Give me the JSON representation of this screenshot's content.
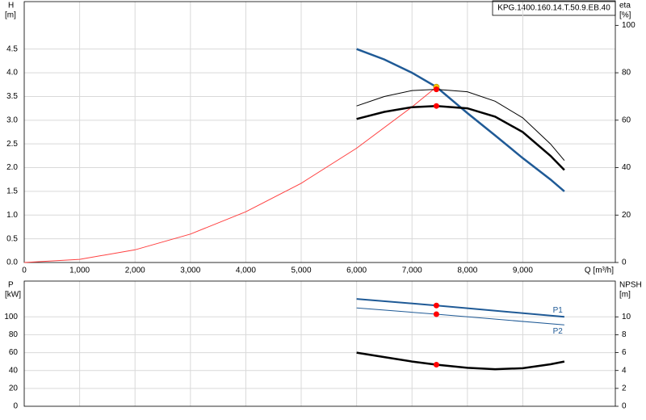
{
  "chart_data": [
    {
      "type": "line",
      "title": "KPG.1400.160.14.T.50.9.EB.40",
      "y_label": "H",
      "y_unit": "[m]",
      "y2_label": "eta",
      "y2_unit": "[%]",
      "x_label": "Q [m³/h]",
      "xlim": [
        0,
        10670
      ],
      "xticks": [
        0,
        {
          "value": 1000,
          "label": "1,000"
        },
        {
          "value": 2000,
          "label": "2,000"
        },
        {
          "value": 3000,
          "label": "3,000"
        },
        {
          "value": 4000,
          "label": "4,000"
        },
        {
          "value": 5000,
          "label": "5,000"
        },
        {
          "value": 6000,
          "label": "6,000"
        },
        {
          "value": 7000,
          "label": "7,000"
        },
        {
          "value": 8000,
          "label": "8,000"
        },
        {
          "value": 9000,
          "label": "9,000"
        }
      ],
      "ylim": [
        0,
        5.5
      ],
      "yticks": [
        {
          "value": 0,
          "label": "0.0"
        },
        0.5,
        {
          "value": 1,
          "label": "1.0"
        },
        1.5,
        {
          "value": 2,
          "label": "2.0"
        },
        2.5,
        {
          "value": 3,
          "label": "3.0"
        },
        3.5,
        {
          "value": 4,
          "label": "4.0"
        },
        4.5
      ],
      "y2lim": [
        0,
        110
      ],
      "y2ticks": [
        0,
        20,
        40,
        60,
        80,
        100
      ],
      "grid": true,
      "duty_x": 7440,
      "series": [
        {
          "color": "#1f5a96",
          "width": 2.5,
          "x": [
            6000,
            6500,
            7000,
            7440,
            8000,
            8500,
            9000,
            9500,
            9750
          ],
          "values": [
            4.5,
            4.28,
            4.0,
            3.7,
            3.15,
            2.68,
            2.2,
            1.75,
            1.5
          ],
          "marker": "#f5c400"
        },
        {
          "color": "#ff4040",
          "width": 1,
          "x": [
            0,
            1000,
            2000,
            3000,
            4000,
            5000,
            6000,
            7000,
            7440
          ],
          "values": [
            0,
            0.067,
            0.267,
            0.6,
            1.07,
            1.67,
            2.41,
            3.28,
            3.7
          ]
        },
        {
          "color": "#000000",
          "width": 1,
          "axis": "y2",
          "x": [
            6000,
            6500,
            7000,
            7440,
            8000,
            8500,
            9000,
            9500,
            9750
          ],
          "values": [
            66,
            70,
            72.5,
            73,
            72,
            68,
            61,
            50,
            43
          ],
          "marker": "#ff0000"
        },
        {
          "color": "#000000",
          "width": 2.5,
          "axis": "y2",
          "x": [
            6000,
            6500,
            7000,
            7440,
            8000,
            8500,
            9000,
            9500,
            9750
          ],
          "values": [
            60.5,
            63.5,
            65.5,
            66,
            65,
            61.5,
            55,
            45,
            39
          ],
          "marker": "#ff0000"
        }
      ]
    },
    {
      "type": "line",
      "y_label": "P",
      "y_unit": "[kW]",
      "y2_label": "NPSH",
      "y2_unit": "[m]",
      "xlim": [
        0,
        10670
      ],
      "ylim": [
        0,
        140
      ],
      "yticks": [
        0,
        20,
        40,
        60,
        80,
        100
      ],
      "y2lim": [
        0,
        14
      ],
      "y2ticks": [
        0,
        2,
        4,
        6,
        8,
        10
      ],
      "grid": true,
      "duty_x": 7440,
      "series": [
        {
          "name": "P1",
          "color": "#1f5a96",
          "width": 2,
          "x": [
            6000,
            7440,
            9750
          ],
          "values": [
            120,
            112.7,
            100
          ],
          "marker": "#ff0000"
        },
        {
          "name": "P2",
          "color": "#1f5a96",
          "width": 1,
          "x": [
            6000,
            7440,
            9750
          ],
          "values": [
            110,
            103,
            91
          ],
          "marker": "#ff0000"
        },
        {
          "color": "#000000",
          "width": 2.5,
          "axis": "y2",
          "x": [
            6000,
            6500,
            7000,
            7440,
            8000,
            8500,
            9000,
            9500,
            9750
          ],
          "values": [
            6.0,
            5.5,
            5.0,
            4.65,
            4.3,
            4.15,
            4.25,
            4.7,
            5.0
          ],
          "marker": "#ff0000"
        }
      ]
    }
  ]
}
